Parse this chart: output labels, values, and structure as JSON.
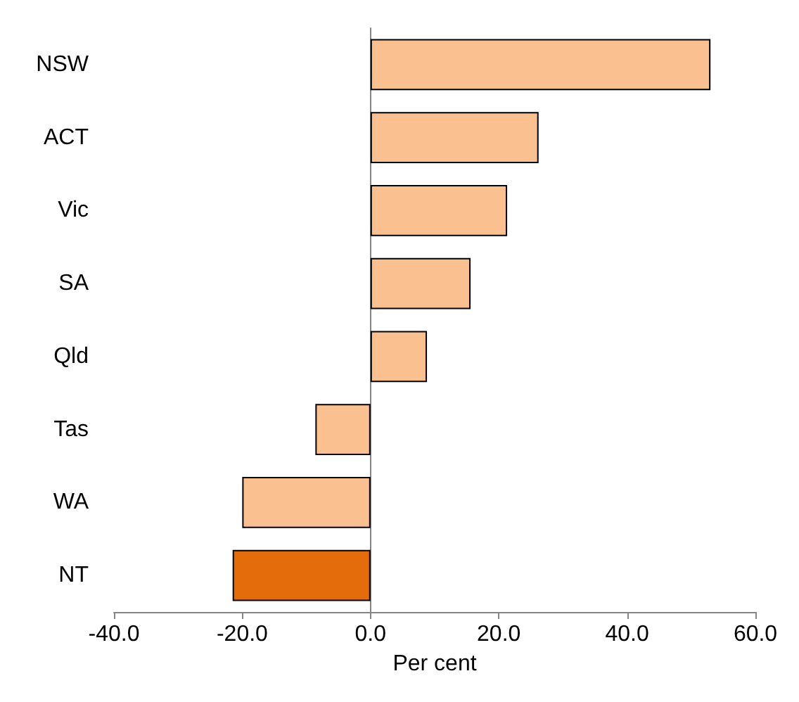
{
  "chart_data": {
    "type": "bar",
    "orientation": "horizontal",
    "xlabel": "Per cent",
    "categories": [
      "NSW",
      "ACT",
      "Vic",
      "SA",
      "Qld",
      "Tas",
      "WA",
      "NT"
    ],
    "values": [
      53.0,
      26.2,
      21.3,
      15.6,
      8.8,
      -8.6,
      -20.0,
      -21.5
    ],
    "colors": [
      "#fac090",
      "#fac090",
      "#fac090",
      "#fac090",
      "#fac090",
      "#fac090",
      "#fac090",
      "#e46c0a"
    ],
    "xlim": [
      -40,
      60
    ],
    "xticks": [
      {
        "value": -40,
        "label": "-40.0"
      },
      {
        "value": -20,
        "label": "-20.0"
      },
      {
        "value": 0,
        "label": "0.0"
      },
      {
        "value": 20,
        "label": "20.0"
      },
      {
        "value": 40,
        "label": "40.0"
      },
      {
        "value": 60,
        "label": "60.0"
      }
    ],
    "data_labels": false
  }
}
